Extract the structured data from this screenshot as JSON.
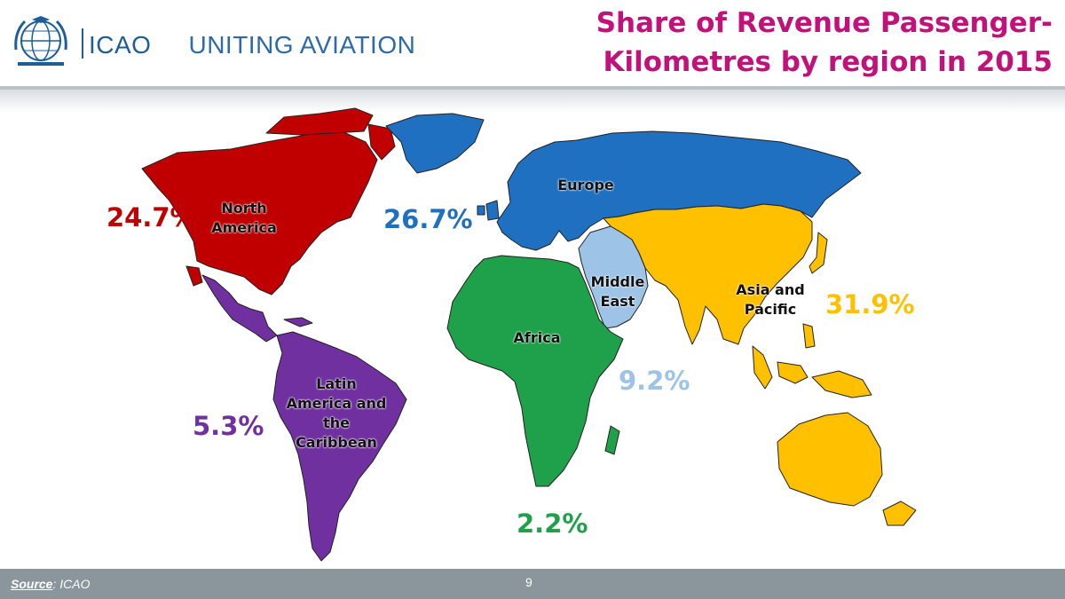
{
  "header": {
    "brand": "ICAO",
    "tagline": "UNITING AVIATION",
    "title_line1": "Share of Revenue Passenger-",
    "title_line2": "Kilometres by region in 2015"
  },
  "regions": [
    {
      "key": "north_america",
      "name": "North America",
      "name_lines": [
        "North",
        "America"
      ],
      "share": "24.7%",
      "color": "#c00000"
    },
    {
      "key": "europe",
      "name": "Europe",
      "name_lines": [
        "Europe"
      ],
      "share": "26.7%",
      "color": "#1f70c1"
    },
    {
      "key": "asia_pacific",
      "name": "Asia and Pacific",
      "name_lines": [
        "Asia and",
        "Pacific"
      ],
      "share": "31.9%",
      "color": "#ffc000"
    },
    {
      "key": "middle_east",
      "name": "Middle East",
      "name_lines": [
        "Middle",
        "East"
      ],
      "share": "9.2%",
      "color": "#9dc3e6"
    },
    {
      "key": "latin_america",
      "name": "Latin America and the Caribbean",
      "name_lines": [
        "Latin",
        "America and",
        "the",
        "Caribbean"
      ],
      "share": "5.3%",
      "color": "#7030a0"
    },
    {
      "key": "africa",
      "name": "Africa",
      "name_lines": [
        "Africa"
      ],
      "share": "2.2%",
      "color": "#1fa04a"
    }
  ],
  "footer": {
    "source_label": "Source",
    "source_value": ": ICAO",
    "page_number": "9"
  }
}
